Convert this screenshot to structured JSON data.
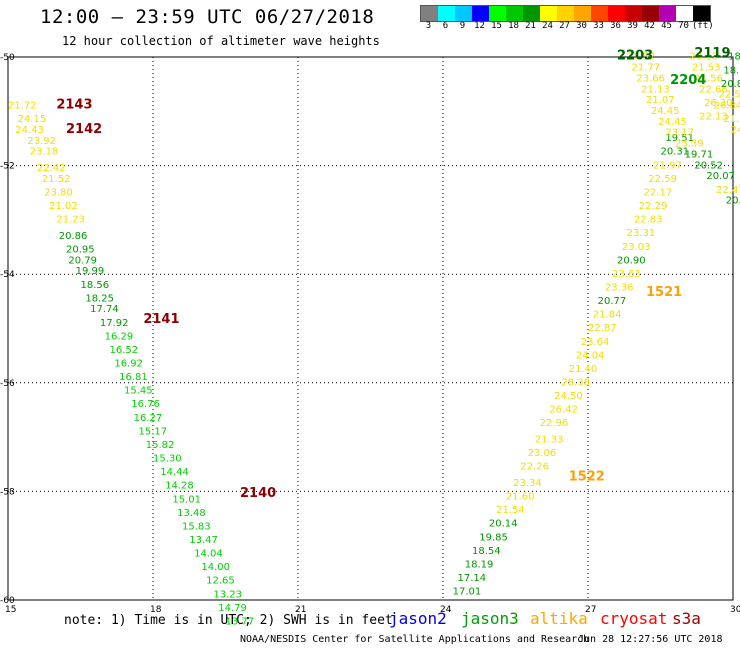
{
  "title": "12:00 — 23:59 UTC 06/27/2018",
  "subtitle": "12 hour collection of altimeter wave heights",
  "scale": {
    "labels": [
      "3",
      "6",
      "9",
      "12",
      "15",
      "18",
      "21",
      "24",
      "27",
      "30",
      "33",
      "36",
      "39",
      "42",
      "45",
      "70",
      "(ft)"
    ],
    "colors": [
      "#808080",
      "#00ffff",
      "#00c8ff",
      "#0000ff",
      "#00ff00",
      "#00c800",
      "#009600",
      "#ffff00",
      "#ffd200",
      "#ffa500",
      "#ff4500",
      "#ff0000",
      "#c80000",
      "#960000",
      "#b400b4",
      "#ffffff",
      "#000000"
    ]
  },
  "axes": {
    "x_ticks": [
      15,
      18,
      21,
      24,
      27,
      30
    ],
    "y_ticks": [
      -50,
      -52,
      -54,
      -56,
      -58,
      -60
    ],
    "x_range": [
      15,
      30
    ],
    "y_range": [
      -50,
      -60
    ]
  },
  "footnote": "note: 1) Time is in UTC; 2) SWH is in feet",
  "legend": [
    {
      "label": "jason2",
      "color": "#0000e6"
    },
    {
      "label": "jason3",
      "color": "#00a000"
    },
    {
      "label": "altika",
      "color": "#ffa500"
    },
    {
      "label": "cryosat",
      "color": "#ff0000"
    },
    {
      "label": "s3a",
      "color": "#a00000"
    }
  ],
  "credit": "NOAA/NESDIS Center for Satellite Applications and Research",
  "timestamp": "Jun 28 12:27:56 UTC 2018",
  "colors": {
    "yellow": "#f0e000",
    "green": "#009600",
    "ltgreen": "#00d000",
    "orange": "#ffa000",
    "darkred": "#8b0000",
    "dkgreen": "#006400"
  },
  "time_labels": [
    {
      "text": "2143",
      "lon": 16.0,
      "lat": -50.95,
      "color": "darkred"
    },
    {
      "text": "2142",
      "lon": 16.2,
      "lat": -51.4,
      "color": "darkred"
    },
    {
      "text": "2141",
      "lon": 17.8,
      "lat": -54.9,
      "color": "darkred"
    },
    {
      "text": "2140",
      "lon": 19.8,
      "lat": -58.1,
      "color": "darkred"
    },
    {
      "text": "2203",
      "lon": 27.6,
      "lat": -50.05,
      "color": "dkgreen"
    },
    {
      "text": "2204",
      "lon": 28.7,
      "lat": -50.5,
      "color": "green"
    },
    {
      "text": "2119",
      "lon": 29.2,
      "lat": -50.0,
      "color": "dkgreen"
    },
    {
      "text": "1521",
      "lon": 28.2,
      "lat": -54.4,
      "color": "orange"
    },
    {
      "text": "1522",
      "lon": 26.6,
      "lat": -57.8,
      "color": "orange"
    }
  ],
  "points": [
    {
      "v": "21.72",
      "lon": 15.0,
      "lat": -50.95,
      "c": "yellow"
    },
    {
      "v": "24.15",
      "lon": 15.2,
      "lat": -51.2,
      "c": "yellow"
    },
    {
      "v": "24.43",
      "lon": 15.15,
      "lat": -51.4,
      "c": "yellow"
    },
    {
      "v": "23.92",
      "lon": 15.4,
      "lat": -51.6,
      "c": "yellow"
    },
    {
      "v": "23.18",
      "lon": 15.45,
      "lat": -51.8,
      "c": "yellow"
    },
    {
      "v": "22.42",
      "lon": 15.6,
      "lat": -52.1,
      "c": "yellow"
    },
    {
      "v": "21.52",
      "lon": 15.7,
      "lat": -52.3,
      "c": "yellow"
    },
    {
      "v": "23.80",
      "lon": 15.75,
      "lat": -52.55,
      "c": "yellow"
    },
    {
      "v": "21.02",
      "lon": 15.85,
      "lat": -52.8,
      "c": "yellow"
    },
    {
      "v": "21.23",
      "lon": 16.0,
      "lat": -53.05,
      "c": "yellow"
    },
    {
      "v": "20.86",
      "lon": 16.05,
      "lat": -53.35,
      "c": "green"
    },
    {
      "v": "20.95",
      "lon": 16.2,
      "lat": -53.6,
      "c": "green"
    },
    {
      "v": "20.79",
      "lon": 16.25,
      "lat": -53.8,
      "c": "green"
    },
    {
      "v": "19.99",
      "lon": 16.4,
      "lat": -54.0,
      "c": "green"
    },
    {
      "v": "18.56",
      "lon": 16.5,
      "lat": -54.25,
      "c": "green"
    },
    {
      "v": "18.25",
      "lon": 16.6,
      "lat": -54.5,
      "c": "green"
    },
    {
      "v": "17.74",
      "lon": 16.7,
      "lat": -54.7,
      "c": "green"
    },
    {
      "v": "17.92",
      "lon": 16.9,
      "lat": -54.95,
      "c": "green"
    },
    {
      "v": "16.29",
      "lon": 17.0,
      "lat": -55.2,
      "c": "ltgreen"
    },
    {
      "v": "16.52",
      "lon": 17.1,
      "lat": -55.45,
      "c": "ltgreen"
    },
    {
      "v": "16.92",
      "lon": 17.2,
      "lat": -55.7,
      "c": "ltgreen"
    },
    {
      "v": "16.81",
      "lon": 17.3,
      "lat": -55.95,
      "c": "ltgreen"
    },
    {
      "v": "15.45",
      "lon": 17.4,
      "lat": -56.2,
      "c": "ltgreen"
    },
    {
      "v": "16.76",
      "lon": 17.55,
      "lat": -56.45,
      "c": "ltgreen"
    },
    {
      "v": "16.27",
      "lon": 17.6,
      "lat": -56.7,
      "c": "ltgreen"
    },
    {
      "v": "15.17",
      "lon": 17.7,
      "lat": -56.95,
      "c": "ltgreen"
    },
    {
      "v": "15.82",
      "lon": 17.85,
      "lat": -57.2,
      "c": "ltgreen"
    },
    {
      "v": "15.30",
      "lon": 18.0,
      "lat": -57.45,
      "c": "ltgreen"
    },
    {
      "v": "14.44",
      "lon": 18.15,
      "lat": -57.7,
      "c": "ltgreen"
    },
    {
      "v": "14.28",
      "lon": 18.25,
      "lat": -57.95,
      "c": "ltgreen"
    },
    {
      "v": "15.01",
      "lon": 18.4,
      "lat": -58.2,
      "c": "ltgreen"
    },
    {
      "v": "13.48",
      "lon": 18.5,
      "lat": -58.45,
      "c": "ltgreen"
    },
    {
      "v": "15.83",
      "lon": 18.6,
      "lat": -58.7,
      "c": "ltgreen"
    },
    {
      "v": "13.47",
      "lon": 18.75,
      "lat": -58.95,
      "c": "ltgreen"
    },
    {
      "v": "14.04",
      "lon": 18.85,
      "lat": -59.2,
      "c": "ltgreen"
    },
    {
      "v": "14.00",
      "lon": 19.0,
      "lat": -59.45,
      "c": "ltgreen"
    },
    {
      "v": "12.65",
      "lon": 19.1,
      "lat": -59.7,
      "c": "ltgreen"
    },
    {
      "v": "13.23",
      "lon": 19.25,
      "lat": -59.95,
      "c": "ltgreen"
    },
    {
      "v": "14.79",
      "lon": 19.35,
      "lat": -60.2,
      "c": "ltgreen"
    },
    {
      "v": "13.77",
      "lon": 19.5,
      "lat": -60.45,
      "c": "ltgreen"
    },
    {
      "v": "17.01",
      "lon": 24.2,
      "lat": -59.9,
      "c": "green"
    },
    {
      "v": "17.14",
      "lon": 24.3,
      "lat": -59.65,
      "c": "green"
    },
    {
      "v": "18.19",
      "lon": 24.45,
      "lat": -59.4,
      "c": "green"
    },
    {
      "v": "18.54",
      "lon": 24.6,
      "lat": -59.15,
      "c": "green"
    },
    {
      "v": "19.85",
      "lon": 24.75,
      "lat": -58.9,
      "c": "green"
    },
    {
      "v": "20.14",
      "lon": 24.95,
      "lat": -58.65,
      "c": "green"
    },
    {
      "v": "21.54",
      "lon": 25.1,
      "lat": -58.4,
      "c": "yellow"
    },
    {
      "v": "21.60",
      "lon": 25.3,
      "lat": -58.15,
      "c": "yellow"
    },
    {
      "v": "23.34",
      "lon": 25.45,
      "lat": -57.9,
      "c": "yellow"
    },
    {
      "v": "22.26",
      "lon": 25.6,
      "lat": -57.6,
      "c": "yellow"
    },
    {
      "v": "23.06",
      "lon": 25.75,
      "lat": -57.35,
      "c": "yellow"
    },
    {
      "v": "21.33",
      "lon": 25.9,
      "lat": -57.1,
      "c": "yellow"
    },
    {
      "v": "22.96",
      "lon": 26.0,
      "lat": -56.8,
      "c": "yellow"
    },
    {
      "v": "26.42",
      "lon": 26.2,
      "lat": -56.55,
      "c": "yellow"
    },
    {
      "v": "24.50",
      "lon": 26.3,
      "lat": -56.3,
      "c": "yellow"
    },
    {
      "v": "28.38",
      "lon": 26.45,
      "lat": -56.05,
      "c": "yellow"
    },
    {
      "v": "21.40",
      "lon": 26.6,
      "lat": -55.8,
      "c": "yellow"
    },
    {
      "v": "24.04",
      "lon": 26.75,
      "lat": -55.55,
      "c": "yellow"
    },
    {
      "v": "23.64",
      "lon": 26.85,
      "lat": -55.3,
      "c": "yellow"
    },
    {
      "v": "22.87",
      "lon": 27.0,
      "lat": -55.05,
      "c": "yellow"
    },
    {
      "v": "21.84",
      "lon": 27.1,
      "lat": -54.8,
      "c": "yellow"
    },
    {
      "v": "20.77",
      "lon": 27.2,
      "lat": -54.55,
      "c": "green"
    },
    {
      "v": "23.36",
      "lon": 27.35,
      "lat": -54.3,
      "c": "yellow"
    },
    {
      "v": "23.63",
      "lon": 27.5,
      "lat": -54.05,
      "c": "yellow"
    },
    {
      "v": "20.90",
      "lon": 27.6,
      "lat": -53.8,
      "c": "green"
    },
    {
      "v": "23.03",
      "lon": 27.7,
      "lat": -53.55,
      "c": "yellow"
    },
    {
      "v": "23.31",
      "lon": 27.8,
      "lat": -53.3,
      "c": "yellow"
    },
    {
      "v": "22.83",
      "lon": 27.95,
      "lat": -53.05,
      "c": "yellow"
    },
    {
      "v": "22.29",
      "lon": 28.05,
      "lat": -52.8,
      "c": "yellow"
    },
    {
      "v": "22.17",
      "lon": 28.15,
      "lat": -52.55,
      "c": "yellow"
    },
    {
      "v": "22.59",
      "lon": 28.25,
      "lat": -52.3,
      "c": "yellow"
    },
    {
      "v": "21.97",
      "lon": 28.35,
      "lat": -52.05,
      "c": "yellow"
    },
    {
      "v": "20.31",
      "lon": 28.5,
      "lat": -51.8,
      "c": "green"
    },
    {
      "v": "19.51",
      "lon": 28.6,
      "lat": -51.55,
      "c": "green"
    },
    {
      "v": "23.52",
      "lon": 27.8,
      "lat": -50.05,
      "c": "yellow"
    },
    {
      "v": "21.77",
      "lon": 27.9,
      "lat": -50.25,
      "c": "yellow"
    },
    {
      "v": "23.66",
      "lon": 28.0,
      "lat": -50.45,
      "c": "yellow"
    },
    {
      "v": "21.13",
      "lon": 28.1,
      "lat": -50.65,
      "c": "yellow"
    },
    {
      "v": "21.07",
      "lon": 28.2,
      "lat": -50.85,
      "c": "yellow"
    },
    {
      "v": "24.45",
      "lon": 28.3,
      "lat": -51.05,
      "c": "yellow"
    },
    {
      "v": "24.45",
      "lon": 28.45,
      "lat": -51.25,
      "c": "yellow"
    },
    {
      "v": "23.17",
      "lon": 28.6,
      "lat": -51.45,
      "c": "yellow"
    },
    {
      "v": "23.39",
      "lon": 28.8,
      "lat": -51.65,
      "c": "yellow"
    },
    {
      "v": "19.71",
      "lon": 29.0,
      "lat": -51.85,
      "c": "green"
    },
    {
      "v": "20.52",
      "lon": 29.2,
      "lat": -52.05,
      "c": "green"
    },
    {
      "v": "20.07",
      "lon": 29.45,
      "lat": -52.25,
      "c": "green"
    },
    {
      "v": "22.47",
      "lon": 29.65,
      "lat": -52.5,
      "c": "yellow"
    },
    {
      "v": "20.0",
      "lon": 29.85,
      "lat": -52.7,
      "c": "green"
    },
    {
      "v": "23.12",
      "lon": 29.1,
      "lat": -50.05,
      "c": "yellow"
    },
    {
      "v": "21.53",
      "lon": 29.15,
      "lat": -50.25,
      "c": "yellow"
    },
    {
      "v": "21.56",
      "lon": 29.2,
      "lat": -50.45,
      "c": "yellow"
    },
    {
      "v": "22.66",
      "lon": 29.3,
      "lat": -50.65,
      "c": "yellow"
    },
    {
      "v": "26.30",
      "lon": 29.4,
      "lat": -50.9,
      "c": "yellow"
    },
    {
      "v": "22.13",
      "lon": 29.3,
      "lat": -51.15,
      "c": "yellow"
    },
    {
      "v": "18.65",
      "lon": 29.9,
      "lat": -50.05,
      "c": "green"
    },
    {
      "v": "18.92",
      "lon": 29.8,
      "lat": -50.3,
      "c": "green"
    },
    {
      "v": "20.88",
      "lon": 29.75,
      "lat": -50.55,
      "c": "green"
    },
    {
      "v": "22.58",
      "lon": 29.7,
      "lat": -50.75,
      "c": "yellow"
    },
    {
      "v": "26.84",
      "lon": 29.6,
      "lat": -50.95,
      "c": "yellow"
    },
    {
      "v": "21.69",
      "lon": 29.8,
      "lat": -51.2,
      "c": "yellow"
    },
    {
      "v": "24.15",
      "lon": 29.95,
      "lat": -51.4,
      "c": "yellow"
    }
  ]
}
